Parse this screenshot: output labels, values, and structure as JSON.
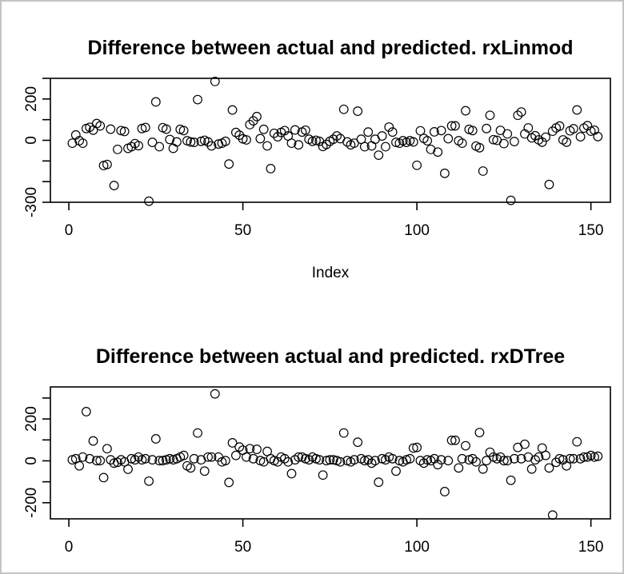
{
  "colors": {
    "background": "#ffffff",
    "frame_border": "#c4c4c4",
    "axis": "#000000",
    "point_stroke": "#000000"
  },
  "chart_data": [
    {
      "type": "scatter",
      "title": "Difference between actual and predicted. rxLinmod",
      "xlabel": "Index",
      "ylabel": "",
      "marker": "open-circle",
      "grid": false,
      "x_is_index": true,
      "xlim": [
        -5.3,
        155.6
      ],
      "ylim": [
        -300,
        300
      ],
      "xticks": [
        0,
        50,
        100,
        150
      ],
      "xtick_labels": [
        "0",
        "50",
        "100",
        "150"
      ],
      "yticks": [
        300,
        200,
        100,
        0,
        -100,
        -200,
        -300
      ],
      "ytick_labels": [
        "",
        "200",
        "",
        "0",
        "",
        "",
        "-300"
      ],
      "values": [
        -14,
        26,
        -2,
        -14,
        57,
        63,
        49,
        81,
        70,
        -122,
        -117,
        54,
        -219,
        -44,
        47,
        43,
        -39,
        -31,
        -16,
        -26,
        57,
        62,
        -295,
        -10,
        186,
        -31,
        61,
        54,
        4,
        -39,
        -8,
        53,
        47,
        -2,
        -8,
        -10,
        197,
        -5,
        0,
        -8,
        -27,
        285,
        -18,
        -14,
        -5,
        -115,
        147,
        38,
        25,
        7,
        2,
        76,
        94,
        115,
        8,
        53,
        -27,
        -137,
        34,
        17,
        38,
        47,
        21,
        -14,
        50,
        -22,
        40,
        49,
        5,
        -5,
        0,
        -5,
        -30,
        -20,
        -5,
        5,
        21,
        8,
        150,
        -8,
        -22,
        -14,
        141,
        5,
        -31,
        40,
        -27,
        5,
        -72,
        21,
        -31,
        64,
        40,
        -10,
        -14,
        -2,
        -10,
        -2,
        -8,
        -121,
        46,
        9,
        -2,
        -44,
        41,
        -57,
        47,
        -160,
        8,
        70,
        70,
        -2,
        -14,
        143,
        53,
        47,
        -28,
        -36,
        -149,
        57,
        121,
        3,
        0,
        48,
        -16,
        31,
        -291,
        -6,
        121,
        137,
        31,
        60,
        12,
        22,
        2,
        -9,
        15,
        -214,
        44,
        60,
        69,
        2,
        -9,
        46,
        56,
        147,
        17,
        59,
        71,
        44,
        49,
        18
      ]
    },
    {
      "type": "scatter",
      "title": "Difference between actual and predicted. rxDTree",
      "xlabel": "",
      "ylabel": "",
      "marker": "open-circle",
      "grid": false,
      "x_is_index": true,
      "xlim": [
        -5.3,
        155.6
      ],
      "ylim": [
        -277,
        353
      ],
      "xticks": [
        0,
        50,
        100,
        150
      ],
      "xtick_labels": [
        "0",
        "50",
        "100",
        "150"
      ],
      "yticks": [
        300,
        200,
        100,
        0,
        -100,
        -200
      ],
      "ytick_labels": [
        "",
        "200",
        "",
        "0",
        "",
        "-200"
      ],
      "values": [
        5,
        10,
        -24,
        18,
        235,
        10,
        95,
        1,
        1,
        -80,
        58,
        5,
        -11,
        -7,
        5,
        -5,
        -40,
        10,
        5,
        18,
        5,
        10,
        -97,
        5,
        105,
        1,
        1,
        5,
        10,
        5,
        10,
        18,
        26,
        -24,
        -34,
        10,
        133,
        5,
        -49,
        18,
        18,
        320,
        18,
        -5,
        1,
        -103,
        86,
        26,
        66,
        51,
        18,
        58,
        10,
        55,
        1,
        -5,
        45,
        10,
        1,
        -5,
        18,
        10,
        -5,
        -61,
        5,
        18,
        18,
        10,
        5,
        18,
        10,
        5,
        -68,
        1,
        5,
        5,
        1,
        -5,
        133,
        1,
        -5,
        5,
        89,
        10,
        1,
        5,
        -11,
        1,
        -102,
        10,
        5,
        18,
        10,
        -49,
        1,
        -5,
        5,
        10,
        61,
        64,
        1,
        -11,
        5,
        1,
        10,
        -18,
        5,
        -147,
        1,
        98,
        98,
        -34,
        10,
        72,
        5,
        10,
        -5,
        135,
        -39,
        1,
        41,
        18,
        10,
        18,
        1,
        1,
        -93,
        10,
        64,
        10,
        79,
        18,
        -39,
        5,
        18,
        61,
        26,
        -34,
        -259,
        -7,
        10,
        5,
        -24,
        10,
        10,
        91,
        10,
        18,
        18,
        26,
        18,
        22
      ]
    }
  ]
}
